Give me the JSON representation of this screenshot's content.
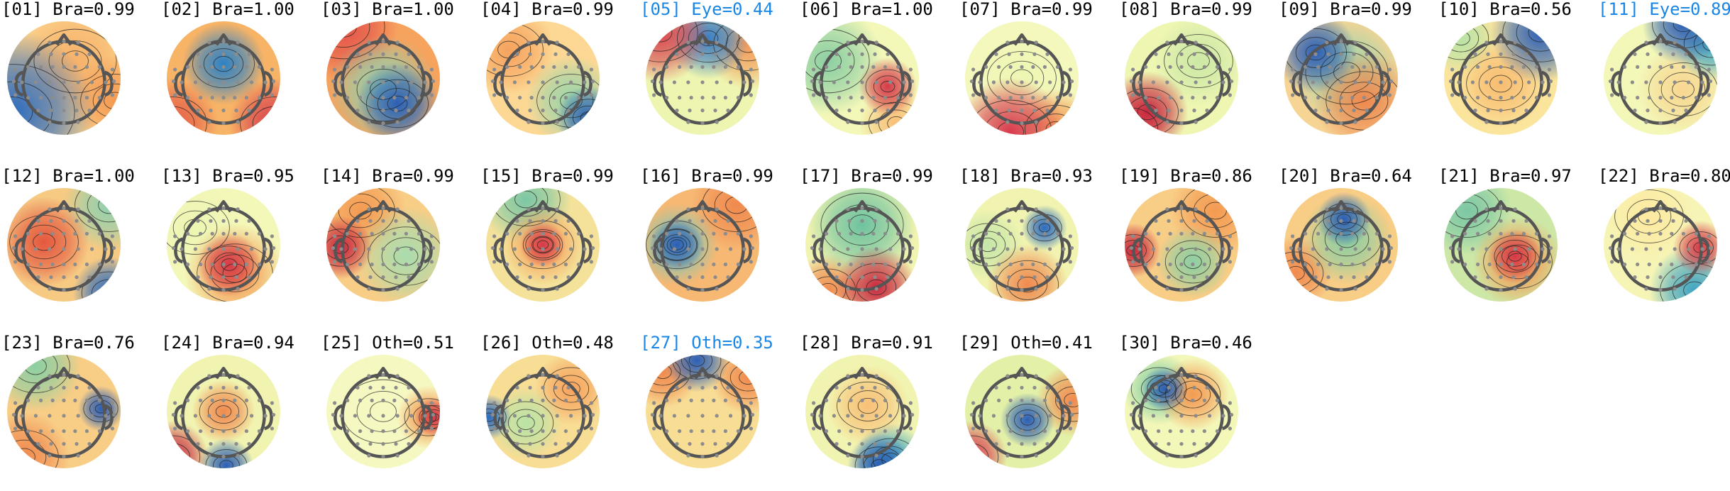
{
  "figure_title": "",
  "colors": {
    "label_default": "#000000",
    "label_highlight": "#1a87e6",
    "head_outline": "#555555",
    "sensor": "#8c8c8c",
    "contour": "#222222",
    "colormap": [
      "#2c5fb5",
      "#3fa4c2",
      "#86cfa5",
      "#e9f4a6",
      "#fde9a0",
      "#f6a35e",
      "#d83a4d"
    ]
  },
  "components": [
    {
      "index": "01",
      "label": "Bra",
      "score": "0.99",
      "title": "[01] Bra=0.99",
      "highlight": false
    },
    {
      "index": "02",
      "label": "Bra",
      "score": "1.00",
      "title": "[02] Bra=1.00",
      "highlight": false
    },
    {
      "index": "03",
      "label": "Bra",
      "score": "1.00",
      "title": "[03] Bra=1.00",
      "highlight": false
    },
    {
      "index": "04",
      "label": "Bra",
      "score": "0.99",
      "title": "[04] Bra=0.99",
      "highlight": false
    },
    {
      "index": "05",
      "label": "Eye",
      "score": "0.44",
      "title": "[05] Eye=0.44",
      "highlight": true
    },
    {
      "index": "06",
      "label": "Bra",
      "score": "1.00",
      "title": "[06] Bra=1.00",
      "highlight": false
    },
    {
      "index": "07",
      "label": "Bra",
      "score": "0.99",
      "title": "[07] Bra=0.99",
      "highlight": false
    },
    {
      "index": "08",
      "label": "Bra",
      "score": "0.99",
      "title": "[08] Bra=0.99",
      "highlight": false
    },
    {
      "index": "09",
      "label": "Bra",
      "score": "0.99",
      "title": "[09] Bra=0.99",
      "highlight": false
    },
    {
      "index": "10",
      "label": "Bra",
      "score": "0.56",
      "title": "[10] Bra=0.56",
      "highlight": false
    },
    {
      "index": "11",
      "label": "Eye",
      "score": "0.89",
      "title": "[11] Eye=0.89",
      "highlight": true
    },
    {
      "index": "12",
      "label": "Bra",
      "score": "1.00",
      "title": "[12] Bra=1.00",
      "highlight": false
    },
    {
      "index": "13",
      "label": "Bra",
      "score": "0.95",
      "title": "[13] Bra=0.95",
      "highlight": false
    },
    {
      "index": "14",
      "label": "Bra",
      "score": "0.99",
      "title": "[14] Bra=0.99",
      "highlight": false
    },
    {
      "index": "15",
      "label": "Bra",
      "score": "0.99",
      "title": "[15] Bra=0.99",
      "highlight": false
    },
    {
      "index": "16",
      "label": "Bra",
      "score": "0.99",
      "title": "[16] Bra=0.99",
      "highlight": false
    },
    {
      "index": "17",
      "label": "Bra",
      "score": "0.99",
      "title": "[17] Bra=0.99",
      "highlight": false
    },
    {
      "index": "18",
      "label": "Bra",
      "score": "0.93",
      "title": "[18] Bra=0.93",
      "highlight": false
    },
    {
      "index": "19",
      "label": "Bra",
      "score": "0.86",
      "title": "[19] Bra=0.86",
      "highlight": false
    },
    {
      "index": "20",
      "label": "Bra",
      "score": "0.64",
      "title": "[20] Bra=0.64",
      "highlight": false
    },
    {
      "index": "21",
      "label": "Bra",
      "score": "0.97",
      "title": "[21] Bra=0.97",
      "highlight": false
    },
    {
      "index": "22",
      "label": "Bra",
      "score": "0.80",
      "title": "[22] Bra=0.80",
      "highlight": false
    },
    {
      "index": "23",
      "label": "Bra",
      "score": "0.76",
      "title": "[23] Bra=0.76",
      "highlight": false
    },
    {
      "index": "24",
      "label": "Bra",
      "score": "0.94",
      "title": "[24] Bra=0.94",
      "highlight": false
    },
    {
      "index": "25",
      "label": "Oth",
      "score": "0.51",
      "title": "[25] Oth=0.51",
      "highlight": false
    },
    {
      "index": "26",
      "label": "Oth",
      "score": "0.48",
      "title": "[26] Oth=0.48",
      "highlight": false
    },
    {
      "index": "27",
      "label": "Oth",
      "score": "0.35",
      "title": "[27] Oth=0.35",
      "highlight": true
    },
    {
      "index": "28",
      "label": "Bra",
      "score": "0.91",
      "title": "[28] Bra=0.91",
      "highlight": false
    },
    {
      "index": "29",
      "label": "Oth",
      "score": "0.41",
      "title": "[29] Oth=0.41",
      "highlight": false
    },
    {
      "index": "30",
      "label": "Bra",
      "score": "0.46",
      "title": "[30] Bra=0.46",
      "highlight": false
    }
  ]
}
